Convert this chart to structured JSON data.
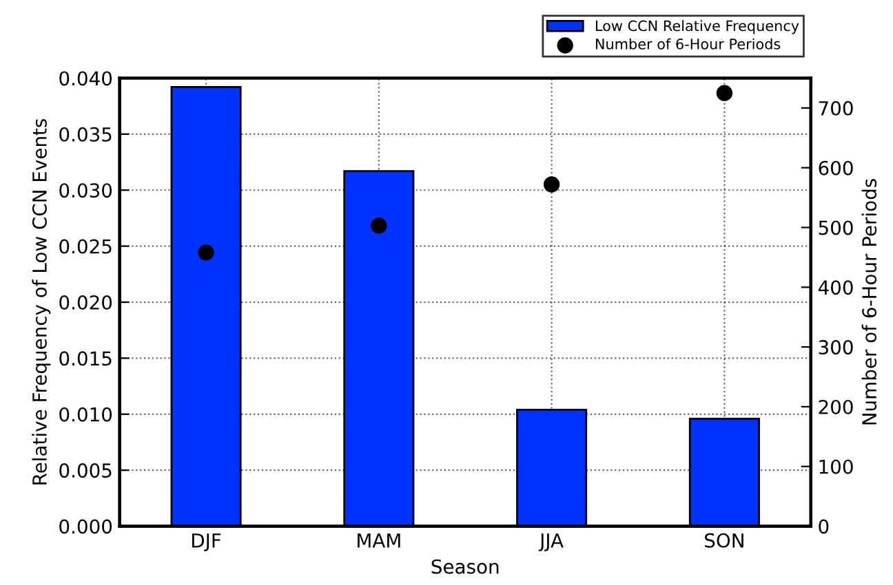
{
  "chart_data": {
    "type": "bar",
    "xlabel": "Season",
    "ylabel": "Relative Frequency of Low CCN Events",
    "y2label": "Number of 6-Hour Periods",
    "categories": [
      "DJF",
      "MAM",
      "JJA",
      "SON"
    ],
    "series": [
      {
        "name": "Low CCN Relative Frequency",
        "color": "#0033ff",
        "values": [
          0.0392,
          0.0317,
          0.0104,
          0.0096
        ]
      },
      {
        "name": "Number of 6-Hour Periods",
        "type": "scatter",
        "axis": "y2",
        "color": "#000000",
        "values": [
          458,
          503,
          572,
          725
        ]
      }
    ],
    "ylim": [
      0,
      0.04
    ],
    "yticks": [
      {
        "value": 0,
        "label": "0.000"
      },
      {
        "value": 0.005,
        "label": "0.005"
      },
      {
        "value": 0.01,
        "label": "0.010"
      },
      {
        "value": 0.015,
        "label": "0.015"
      },
      {
        "value": 0.02,
        "label": "0.020"
      },
      {
        "value": 0.025,
        "label": "0.025"
      },
      {
        "value": 0.03,
        "label": "0.030"
      },
      {
        "value": 0.035,
        "label": "0.035"
      },
      {
        "value": 0.04,
        "label": "0.040"
      }
    ],
    "y2lim": [
      0,
      750
    ],
    "y2ticks": [
      0,
      100,
      200,
      300,
      400,
      500,
      600,
      700
    ],
    "grid": true,
    "legend": "top right",
    "marker": "circle",
    "line_style": "dotted"
  }
}
